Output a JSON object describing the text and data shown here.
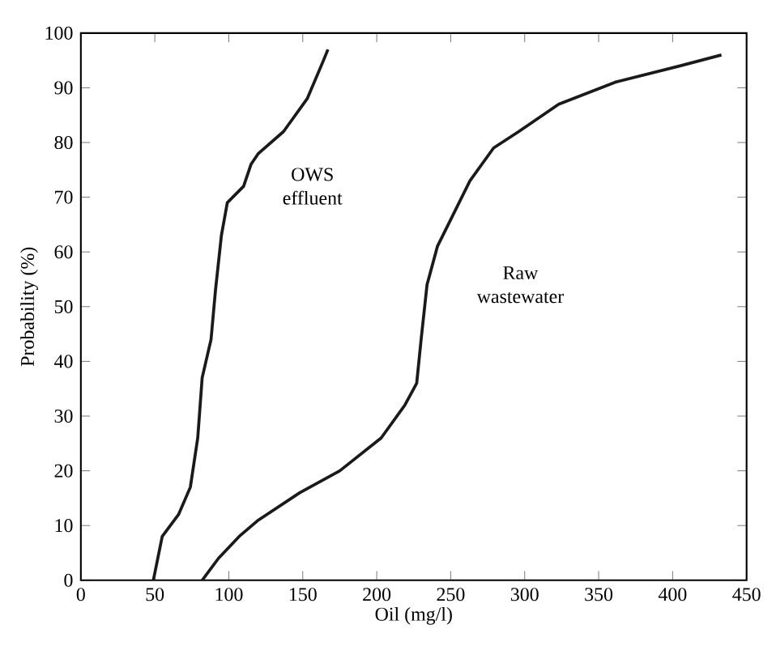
{
  "chart_data": {
    "type": "line",
    "xlabel": "Oil (mg/l)",
    "ylabel": "Probability (%)",
    "xlim": [
      0,
      450
    ],
    "ylim": [
      0,
      100
    ],
    "xticks": [
      0,
      50,
      100,
      150,
      200,
      250,
      300,
      350,
      400,
      450
    ],
    "yticks": [
      0,
      10,
      20,
      30,
      40,
      50,
      60,
      70,
      80,
      90,
      100
    ],
    "grid": false,
    "legend": false,
    "marker": "none",
    "line_style": "solid",
    "series": [
      {
        "name": "OWS effluent",
        "color": "#1a1a1a",
        "x": [
          49,
          55,
          66,
          74,
          79,
          82,
          88,
          91,
          95,
          99,
          110,
          115,
          120,
          137,
          153,
          164,
          167
        ],
        "values": [
          0,
          8,
          12,
          17,
          26,
          37,
          44,
          53,
          63,
          69,
          72,
          76,
          78,
          82,
          88,
          95,
          97
        ]
      },
      {
        "name": "Raw wastewater",
        "color": "#1a1a1a",
        "x": [
          82,
          93,
          107,
          120,
          148,
          175,
          203,
          219,
          227,
          230,
          234,
          241,
          252,
          263,
          279,
          296,
          323,
          361,
          405,
          433
        ],
        "values": [
          0,
          4,
          8,
          11,
          16,
          20,
          26,
          32,
          36,
          44,
          54,
          61,
          67,
          73,
          79,
          82,
          87,
          91,
          94,
          96
        ]
      }
    ]
  }
}
